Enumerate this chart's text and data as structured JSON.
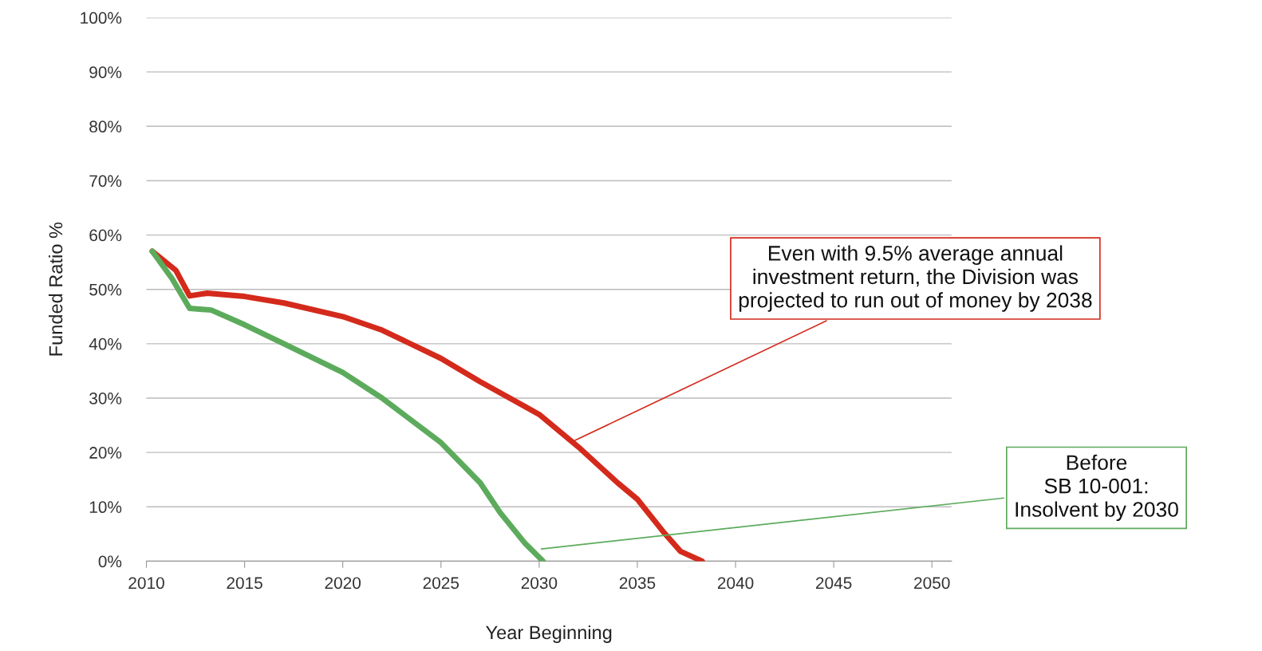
{
  "chart_data": {
    "type": "line",
    "xlabel": "Year Beginning",
    "ylabel": "Funded Ratio %",
    "xlim": [
      2010,
      2051
    ],
    "xticks": [
      2010,
      2015,
      2020,
      2025,
      2030,
      2035,
      2040,
      2045,
      2050
    ],
    "ylim": [
      0,
      100
    ],
    "yticks": [
      {
        "value": 0,
        "label": "0%"
      },
      {
        "value": 10,
        "label": "10%"
      },
      {
        "value": 20,
        "label": "20%"
      },
      {
        "value": 30,
        "label": "30%"
      },
      {
        "value": 40,
        "label": "40%"
      },
      {
        "value": 50,
        "label": "50%"
      },
      {
        "value": 60,
        "label": "60%"
      },
      {
        "value": 70,
        "label": "70%"
      },
      {
        "value": 80,
        "label": "80%"
      },
      {
        "value": 90,
        "label": "90%"
      },
      {
        "value": 100,
        "label": "100%"
      }
    ],
    "grid": "y",
    "marker": "none",
    "line_style": "solid",
    "legend": false,
    "series": [
      {
        "color": "#d42a1c",
        "x": [
          2010.3,
          2011.5,
          2012.2,
          2013.1,
          2015,
          2017,
          2020,
          2022,
          2025,
          2027,
          2030,
          2032,
          2034,
          2035,
          2036.3,
          2037.2,
          2038.3
        ],
        "values": [
          57,
          53.5,
          48.8,
          49.3,
          48.7,
          47.5,
          45,
          42.5,
          37.3,
          33,
          27,
          21,
          14.4,
          11.4,
          5.5,
          1.8,
          0
        ]
      },
      {
        "color": "#5cab5c",
        "x": [
          2010.3,
          2011.3,
          2012.2,
          2013.3,
          2015,
          2017,
          2020,
          2022,
          2025,
          2027,
          2028,
          2029.3,
          2030.2
        ],
        "values": [
          57,
          52,
          46.5,
          46.2,
          43.5,
          40,
          34.7,
          30,
          21.8,
          14.4,
          9,
          3.2,
          0
        ]
      }
    ],
    "annotations": [
      {
        "text": "Even with 9.5% average annual\ninvestment return, the Division was\nprojected to run out of money by 2038",
        "x": 2031.7,
        "y": 22
      },
      {
        "text": "Before\nSB 10-001:\nInsolvent by 2030",
        "x": 2030,
        "y": 2.2
      }
    ]
  }
}
